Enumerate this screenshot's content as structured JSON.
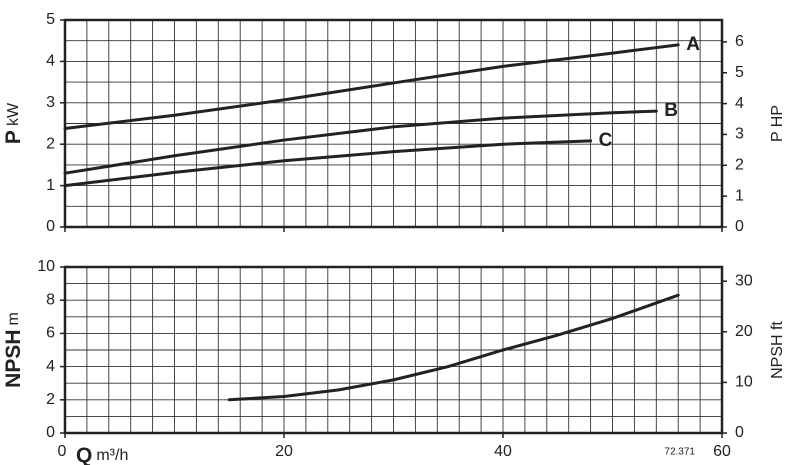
{
  "chart_data": [
    {
      "type": "line",
      "ylabel_symbol": "P",
      "ylabel_unit": "kW",
      "y2label": "P HP",
      "xlim": [
        0,
        60
      ],
      "xticks": [
        0,
        20,
        40,
        60
      ],
      "show_xtick_labels": false,
      "ylim": [
        0,
        5
      ],
      "yticks": [
        0,
        1,
        2,
        3,
        4,
        5
      ],
      "y2lim": [
        0,
        6.71
      ],
      "y2ticks": [
        0,
        1,
        2,
        3,
        4,
        5,
        6
      ],
      "grid": true,
      "xgrid_step": 2,
      "ygrid_step": 0.5,
      "series": [
        {
          "name": "A",
          "color": "#222222",
          "x": [
            0,
            10,
            20,
            30,
            40,
            50,
            56
          ],
          "values": [
            2.38,
            2.7,
            3.07,
            3.48,
            3.88,
            4.2,
            4.4
          ]
        },
        {
          "name": "B",
          "color": "#222222",
          "x": [
            0,
            10,
            20,
            30,
            40,
            50,
            54
          ],
          "values": [
            1.3,
            1.72,
            2.1,
            2.42,
            2.63,
            2.76,
            2.8
          ]
        },
        {
          "name": "C",
          "color": "#222222",
          "x": [
            0,
            10,
            20,
            30,
            40,
            48
          ],
          "values": [
            1.0,
            1.32,
            1.6,
            1.82,
            2.0,
            2.08
          ]
        }
      ]
    },
    {
      "type": "line",
      "ylabel_symbol": "NPSH",
      "ylabel_unit": "m",
      "y2label": "NPSH ft",
      "xlabel_symbol": "Q",
      "xlabel_unit": "m³/h",
      "annotation": "72.371",
      "xlim": [
        0,
        60
      ],
      "xticks": [
        0,
        20,
        40,
        60
      ],
      "show_xtick_labels": true,
      "ylim": [
        0,
        10
      ],
      "yticks": [
        0,
        2,
        4,
        6,
        8,
        10
      ],
      "y2lim": [
        0,
        32.8
      ],
      "y2ticks": [
        0,
        10,
        20,
        30
      ],
      "grid": true,
      "xgrid_step": 2,
      "ygrid_step": 1,
      "series": [
        {
          "color": "#222222",
          "x": [
            15,
            20,
            25,
            30,
            35,
            40,
            45,
            50,
            56
          ],
          "values": [
            2.0,
            2.2,
            2.6,
            3.2,
            4.0,
            5.0,
            5.9,
            6.9,
            8.3
          ]
        }
      ]
    }
  ]
}
